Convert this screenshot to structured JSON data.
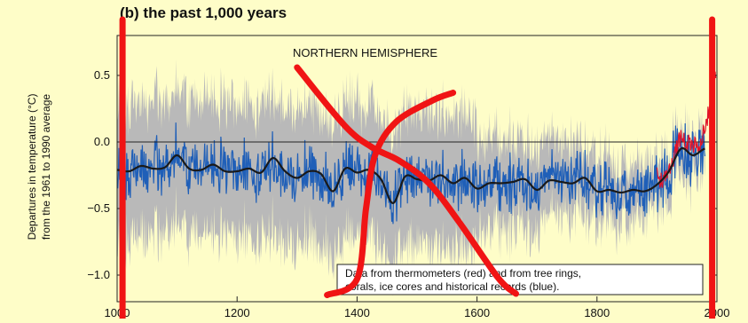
{
  "colors": {
    "background": "#fefdc8",
    "uncertainty_band": "#b9b9b9",
    "proxy_series": "#1f5fb8",
    "smoothed_series": "#1a1a1a",
    "thermometer_series": "#e0142a",
    "overlay_marks": "#f01414"
  },
  "chart_data": {
    "type": "line",
    "title": "(b) the past 1,000 years",
    "xlabel": "",
    "ylabel": "Departures in temperature (°C) from the 1961 to 1990 average",
    "xlim": [
      1000,
      2000
    ],
    "ylim": [
      -1.2,
      0.8
    ],
    "x_ticks": [
      1000,
      1200,
      1400,
      1600,
      1800,
      2000
    ],
    "x_tick_labels": [
      "1000",
      "1200",
      "1400",
      "1600",
      "1800",
      "2000"
    ],
    "y_ticks": [
      0.5,
      0.0,
      -0.5,
      -1.0
    ],
    "y_tick_labels": [
      "0.5",
      "0.0",
      "−0.5",
      "−1.0"
    ],
    "zero_line": 0.0,
    "grid": false,
    "annotations": {
      "region": "NORTHERN HEMISPHERE",
      "legend_line1": "Data from thermometers (red) and from tree rings,",
      "legend_line2": "corals, ice cores and historical records (blue)."
    },
    "smoothed_series": {
      "x": [
        1000,
        1020,
        1040,
        1060,
        1080,
        1100,
        1120,
        1140,
        1160,
        1180,
        1200,
        1220,
        1240,
        1260,
        1280,
        1300,
        1320,
        1340,
        1360,
        1380,
        1400,
        1420,
        1440,
        1460,
        1480,
        1500,
        1520,
        1540,
        1560,
        1580,
        1600,
        1620,
        1640,
        1660,
        1680,
        1700,
        1720,
        1740,
        1760,
        1780,
        1800,
        1820,
        1840,
        1860,
        1880,
        1900,
        1920,
        1940,
        1960,
        1980
      ],
      "y": [
        -0.21,
        -0.22,
        -0.18,
        -0.2,
        -0.19,
        -0.1,
        -0.2,
        -0.21,
        -0.17,
        -0.22,
        -0.22,
        -0.2,
        -0.23,
        -0.12,
        -0.22,
        -0.27,
        -0.22,
        -0.24,
        -0.37,
        -0.2,
        -0.23,
        -0.21,
        -0.28,
        -0.46,
        -0.26,
        -0.28,
        -0.29,
        -0.25,
        -0.31,
        -0.27,
        -0.35,
        -0.31,
        -0.31,
        -0.3,
        -0.28,
        -0.36,
        -0.29,
        -0.3,
        -0.31,
        -0.27,
        -0.37,
        -0.36,
        -0.38,
        -0.36,
        -0.37,
        -0.32,
        -0.22,
        -0.05,
        -0.1,
        -0.05
      ]
    },
    "thermometer_series": {
      "x": [
        1900,
        1910,
        1920,
        1930,
        1940,
        1950,
        1960,
        1970,
        1980,
        1990,
        1998
      ],
      "y": [
        -0.25,
        -0.3,
        -0.2,
        -0.1,
        0.05,
        0.0,
        -0.02,
        -0.05,
        0.1,
        0.3,
        0.5
      ]
    }
  },
  "overlay_marks": [
    {
      "name": "left-vertical",
      "points": [
        [
          1009,
          0.92
        ],
        [
          1009,
          -1.33
        ]
      ]
    },
    {
      "name": "right-vertical",
      "points": [
        [
          1992,
          0.92
        ],
        [
          1992,
          -1.33
        ]
      ]
    },
    {
      "name": "diagonal-cross",
      "points": [
        [
          1300,
          0.56
        ],
        [
          1380,
          0.12
        ],
        [
          1425,
          -0.04
        ],
        [
          1470,
          -0.14
        ],
        [
          1520,
          -0.31
        ],
        [
          1570,
          -0.6
        ],
        [
          1635,
          -1.02
        ],
        [
          1665,
          -1.14
        ]
      ]
    },
    {
      "name": "curved-cross",
      "points": [
        [
          1350,
          -1.15
        ],
        [
          1400,
          -1.03
        ],
        [
          1415,
          -0.5
        ],
        [
          1430,
          -0.1
        ],
        [
          1465,
          0.15
        ],
        [
          1525,
          0.31
        ],
        [
          1560,
          0.37
        ]
      ]
    }
  ]
}
